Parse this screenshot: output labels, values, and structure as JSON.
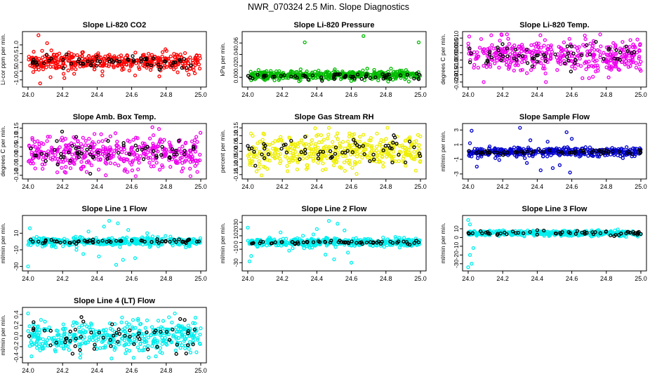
{
  "figure_title": "NWR_070324  2.5 Min. Slope Diagnostics",
  "chart_data": [
    {
      "type": "scatter",
      "title": "Slope Li-820 CO2",
      "ylabel": "Li-cor ppm per min.",
      "xlim": [
        24.0,
        25.0
      ],
      "ylim": [
        -1.25,
        1.6
      ],
      "xticks": [
        24.0,
        24.2,
        24.4,
        24.6,
        24.8,
        25.0
      ],
      "xtick_labels": [
        "24.0",
        "24.2",
        "24.4",
        "24.6",
        "24.8",
        "25.0"
      ],
      "yticks": [
        -1.0,
        -0.5,
        0.0,
        0.5,
        1.0
      ],
      "ytick_labels": [
        "-1.0",
        "-0.5",
        "0.0",
        "0.5",
        "1.0"
      ],
      "series": [
        {
          "name": "all",
          "color": "#ff0000",
          "center": 0.05,
          "spread": 0.25,
          "n": 420,
          "outliers": [
            [
              24.06,
              1.55
            ],
            [
              24.03,
              -0.55
            ],
            [
              24.13,
              -0.85
            ],
            [
              24.07,
              -1.2
            ],
            [
              24.21,
              -0.9
            ],
            [
              24.43,
              -0.75
            ],
            [
              24.62,
              -0.75
            ],
            [
              24.76,
              -0.8
            ],
            [
              24.93,
              -0.7
            ],
            [
              24.11,
              1.1
            ]
          ]
        },
        {
          "name": "black",
          "color": "#000000",
          "center": 0.05,
          "spread": 0.2,
          "n": 60,
          "outliers": []
        }
      ]
    },
    {
      "type": "scatter",
      "title": "Slope Li-820 Pressure",
      "ylabel": "kPa per min.",
      "xlim": [
        24.0,
        25.0
      ],
      "ylim": [
        -0.012,
        0.075
      ],
      "xticks": [
        24.0,
        24.2,
        24.4,
        24.6,
        24.8,
        25.0
      ],
      "xtick_labels": [
        "24.0",
        "24.2",
        "24.4",
        "24.6",
        "24.8",
        "25.0"
      ],
      "yticks": [
        0.0,
        0.02,
        0.04,
        0.06
      ],
      "ytick_labels": [
        "0.00",
        "0.02",
        "0.04",
        "0.06"
      ],
      "series": [
        {
          "name": "all",
          "color": "#00bb00",
          "center": 0.004,
          "spread": 0.004,
          "n": 420,
          "outliers": [
            [
              24.33,
              0.061
            ],
            [
              24.67,
              0.072
            ],
            [
              24.99,
              0.061
            ],
            [
              24.02,
              -0.005
            ]
          ]
        },
        {
          "name": "black",
          "color": "#000000",
          "center": 0.002,
          "spread": 0.003,
          "n": 60,
          "outliers": [
            [
              24.43,
              -0.006
            ],
            [
              24.99,
              -0.003
            ]
          ]
        }
      ]
    },
    {
      "type": "scatter",
      "title": "Slope Li-820 Temp.",
      "ylabel": "degrees C per min.",
      "xlim": [
        24.0,
        25.0
      ],
      "ylim": [
        -0.0215,
        0.0125
      ],
      "xticks": [
        24.0,
        24.2,
        24.4,
        24.6,
        24.8,
        25.0
      ],
      "xtick_labels": [
        "24.0",
        "24.2",
        "24.4",
        "24.6",
        "24.8",
        "25.0"
      ],
      "yticks": [
        -0.02,
        -0.015,
        -0.01,
        -0.005,
        0.0,
        0.005,
        0.01
      ],
      "ytick_labels": [
        "-0.020",
        "-0.015",
        "-0.010",
        "-0.005",
        "0.000",
        "0.005",
        "0.010"
      ],
      "series": [
        {
          "name": "all",
          "color": "#ee00ee",
          "center": -0.002,
          "spread": 0.0055,
          "n": 420,
          "outliers": [
            [
              24.09,
              -0.02
            ],
            [
              24.45,
              -0.02
            ],
            [
              24.98,
              0.009
            ]
          ]
        },
        {
          "name": "black",
          "color": "#000000",
          "center": -0.002,
          "spread": 0.0045,
          "n": 60,
          "outliers": []
        }
      ]
    },
    {
      "type": "scatter",
      "title": "Slope Amb. Box Temp.",
      "ylabel": "degrees C per min.",
      "xlim": [
        24.0,
        25.0
      ],
      "ylim": [
        -0.105,
        0.16
      ],
      "xticks": [
        24.0,
        24.2,
        24.4,
        24.6,
        24.8,
        25.0
      ],
      "xtick_labels": [
        "24.0",
        "24.2",
        "24.4",
        "24.6",
        "24.8",
        "25.0"
      ],
      "yticks": [
        -0.1,
        -0.05,
        0.0,
        0.05,
        0.1,
        0.15
      ],
      "ytick_labels": [
        "-0.10",
        "-0.05",
        "0.00",
        "0.05",
        "0.10",
        "0.15"
      ],
      "series": [
        {
          "name": "all",
          "color": "#ee00ee",
          "center": 0.02,
          "spread": 0.045,
          "n": 420,
          "outliers": [
            [
              24.72,
              0.155
            ],
            [
              24.45,
              -0.1
            ]
          ]
        },
        {
          "name": "black",
          "color": "#000000",
          "center": 0.02,
          "spread": 0.04,
          "n": 60,
          "outliers": []
        }
      ]
    },
    {
      "type": "scatter",
      "title": "Slope Gas Stream RH",
      "ylabel": "percent per min.",
      "xlim": [
        24.0,
        25.0
      ],
      "ylim": [
        -0.16,
        0.16
      ],
      "xticks": [
        24.0,
        24.2,
        24.4,
        24.6,
        24.8,
        25.0
      ],
      "xtick_labels": [
        "24.0",
        "24.2",
        "24.4",
        "24.6",
        "24.8",
        "25.0"
      ],
      "yticks": [
        -0.15,
        -0.1,
        -0.05,
        0.0,
        0.05,
        0.1,
        0.15
      ],
      "ytick_labels": [
        "-0.15",
        "-0.10",
        "-0.05",
        "0.00",
        "0.05",
        "0.10",
        "0.15"
      ],
      "series": [
        {
          "name": "all",
          "color": "#eeee00",
          "center": 0.0,
          "spread": 0.055,
          "n": 420,
          "outliers": [
            [
              24.47,
              0.15
            ],
            [
              24.08,
              -0.155
            ],
            [
              24.63,
              -0.145
            ]
          ]
        },
        {
          "name": "black",
          "color": "#000000",
          "center": 0.0,
          "spread": 0.05,
          "n": 60,
          "outliers": []
        }
      ]
    },
    {
      "type": "scatter",
      "title": "Slope Sample Flow",
      "ylabel": "ml/min per min.",
      "xlim": [
        24.0,
        25.0
      ],
      "ylim": [
        -3.3,
        3.5
      ],
      "xticks": [
        24.0,
        24.2,
        24.4,
        24.6,
        24.8,
        25.0
      ],
      "xtick_labels": [
        "24.0",
        "24.2",
        "24.4",
        "24.6",
        "24.8",
        "25.0"
      ],
      "yticks": [
        -3,
        -1,
        1,
        3
      ],
      "ytick_labels": [
        "-3",
        "-1",
        "1",
        "3"
      ],
      "series": [
        {
          "name": "all",
          "color": "#0000cc",
          "center": 0.0,
          "spread": 0.3,
          "n": 420,
          "outliers": [
            [
              24.02,
              2.9
            ],
            [
              24.3,
              3.3
            ],
            [
              24.57,
              2.7
            ],
            [
              24.42,
              -2.5
            ],
            [
              24.59,
              -2.8
            ],
            [
              24.01,
              1.2
            ],
            [
              24.05,
              -2.0
            ],
            [
              24.49,
              -2.2
            ],
            [
              24.53,
              -1.8
            ],
            [
              24.36,
              1.6
            ],
            [
              24.46,
              1.4
            ],
            [
              24.6,
              1.8
            ],
            [
              24.34,
              -1.5
            ],
            [
              24.18,
              -1.1
            ]
          ]
        },
        {
          "name": "black",
          "color": "#000000",
          "center": 0.0,
          "spread": 0.15,
          "n": 60,
          "outliers": []
        }
      ]
    },
    {
      "type": "scatter",
      "title": "Slope Line 1 Flow",
      "ylabel": "ml/min per min.",
      "xlim": [
        24.0,
        25.0
      ],
      "ylim": [
        -32,
        28
      ],
      "xticks": [
        24.0,
        24.2,
        24.4,
        24.6,
        24.8,
        25.0
      ],
      "xtick_labels": [
        "24.0",
        "24.2",
        "24.4",
        "24.6",
        "24.8",
        "25.0"
      ],
      "yticks": [
        -30,
        -10,
        10
      ],
      "ytick_labels": [
        "-30",
        "-10",
        "10"
      ],
      "series": [
        {
          "name": "all",
          "color": "#00eeee",
          "center": 0.0,
          "spread": 2.5,
          "n": 420,
          "outliers": [
            [
              24.01,
              16
            ],
            [
              24.47,
              25
            ],
            [
              24.52,
              22
            ],
            [
              24.44,
              18
            ],
            [
              24.58,
              14
            ],
            [
              24.35,
              12
            ],
            [
              24.41,
              -18
            ],
            [
              24.55,
              -22
            ],
            [
              24.51,
              -28
            ],
            [
              24.62,
              -20
            ],
            [
              24.32,
              -15
            ],
            [
              24.69,
              10
            ],
            [
              24.0,
              -30
            ],
            [
              24.28,
              -10
            ]
          ]
        },
        {
          "name": "black",
          "color": "#000000",
          "center": 0.0,
          "spread": 1.0,
          "n": 60,
          "outliers": []
        }
      ]
    },
    {
      "type": "scatter",
      "title": "Slope Line 2 Flow",
      "ylabel": "ml/min per min.",
      "xlim": [
        24.0,
        25.0
      ],
      "ylim": [
        -38,
        36
      ],
      "xticks": [
        24.0,
        24.2,
        24.4,
        24.6,
        24.8,
        25.0
      ],
      "xtick_labels": [
        "24.0",
        "24.2",
        "24.4",
        "24.6",
        "24.8",
        "25.0"
      ],
      "yticks": [
        -30,
        -10,
        0,
        10,
        20,
        30
      ],
      "ytick_labels": [
        "-30",
        "-10",
        "0",
        "10",
        "20",
        "30"
      ],
      "series": [
        {
          "name": "all",
          "color": "#00eeee",
          "center": 0.0,
          "spread": 3.0,
          "n": 420,
          "outliers": [
            [
              24.0,
              22
            ],
            [
              24.01,
              -28
            ],
            [
              24.02,
              -20
            ],
            [
              24.47,
              32
            ],
            [
              24.52,
              28
            ],
            [
              24.5,
              -25
            ],
            [
              24.56,
              18
            ],
            [
              24.4,
              20
            ],
            [
              24.45,
              -18
            ],
            [
              24.58,
              -15
            ],
            [
              24.38,
              12
            ],
            [
              24.6,
              -30
            ],
            [
              24.19,
              15
            ],
            [
              24.24,
              -12
            ],
            [
              24.32,
              10
            ]
          ]
        },
        {
          "name": "black",
          "color": "#000000",
          "center": 0.0,
          "spread": 1.2,
          "n": 60,
          "outliers": []
        }
      ]
    },
    {
      "type": "scatter",
      "title": "Slope Line 3 Flow",
      "ylabel": "ml/min per min.",
      "xlim": [
        24.0,
        25.0
      ],
      "ylim": [
        -35,
        22
      ],
      "xticks": [
        24.0,
        24.2,
        24.4,
        24.6,
        24.8,
        25.0
      ],
      "xtick_labels": [
        "24.0",
        "24.2",
        "24.4",
        "24.6",
        "24.8",
        "25.0"
      ],
      "yticks": [
        -30,
        -20,
        -10,
        0,
        10
      ],
      "ytick_labels": [
        "-30",
        "-20",
        "-10",
        "0",
        "10"
      ],
      "series": [
        {
          "name": "all",
          "color": "#00eeee",
          "center": 5.0,
          "spread": 1.5,
          "n": 420,
          "outliers": [
            [
              24.0,
              20
            ],
            [
              24.01,
              -20
            ],
            [
              24.02,
              -30
            ],
            [
              24.01,
              15
            ],
            [
              24.03,
              -12
            ],
            [
              24.0,
              -34
            ]
          ]
        },
        {
          "name": "black",
          "color": "#000000",
          "center": 5.0,
          "spread": 1.2,
          "n": 60,
          "outliers": []
        }
      ]
    },
    {
      "type": "scatter",
      "title": "Slope Line 4 (LT) Flow",
      "ylabel": "ml/min per min.",
      "xlim": [
        24.0,
        25.0
      ],
      "ylim": [
        -0.45,
        0.48
      ],
      "xticks": [
        24.0,
        24.2,
        24.4,
        24.6,
        24.8,
        25.0
      ],
      "xtick_labels": [
        "24.0",
        "24.2",
        "24.4",
        "24.6",
        "24.8",
        "25.0"
      ],
      "yticks": [
        -0.4,
        -0.2,
        0.0,
        0.2,
        0.4
      ],
      "ytick_labels": [
        "-0.4",
        "-0.2",
        "0.0",
        "0.2",
        "0.4"
      ],
      "series": [
        {
          "name": "all",
          "color": "#00eeee",
          "center": 0.0,
          "spread": 0.15,
          "n": 420,
          "outliers": [
            [
              24.0,
              0.42
            ],
            [
              24.02,
              -0.38
            ],
            [
              24.85,
              0.42
            ],
            [
              24.74,
              -0.38
            ]
          ]
        },
        {
          "name": "black",
          "color": "#000000",
          "center": 0.0,
          "spread": 0.15,
          "n": 60,
          "outliers": []
        }
      ]
    }
  ]
}
